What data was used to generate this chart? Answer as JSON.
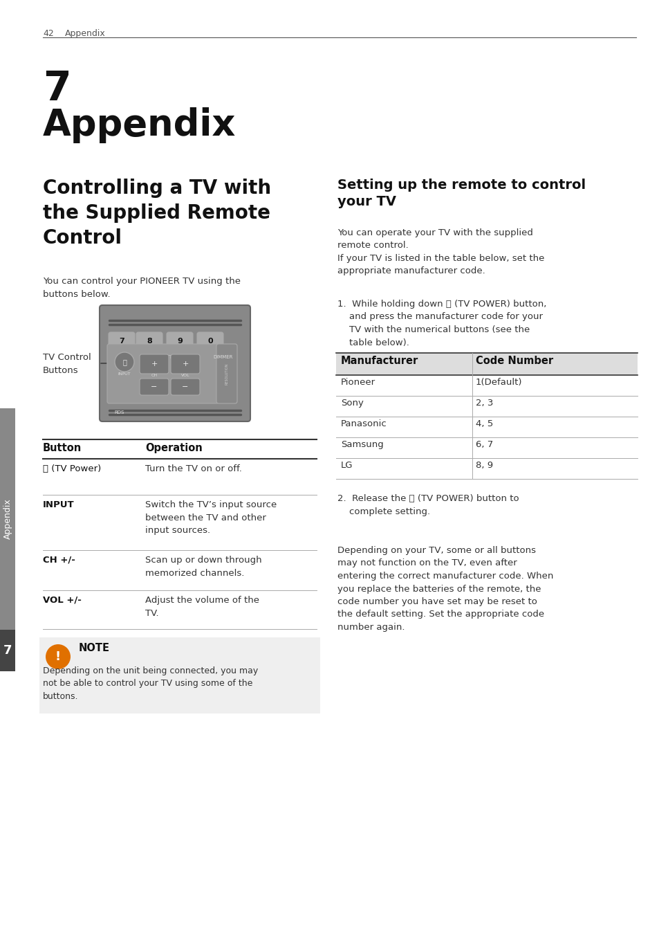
{
  "bg_color": "#ffffff",
  "page_num": "42",
  "page_header": "Appendix",
  "chapter_num": "7",
  "chapter_title": "Appendix",
  "section1_title_lines": [
    "Controlling a TV with",
    "the Supplied Remote",
    "Control"
  ],
  "section1_body": "You can control your PIONEER TV using the\nbuttons below.",
  "tv_control_label": "TV Control\nButtons",
  "section2_title": "Setting up the remote to control\nyour TV",
  "section2_body1": "You can operate your TV with the supplied\nremote control.\nIf your TV is listed in the table below, set the\nappropriate manufacturer code.",
  "step1_text": "1.  While holding down ⏻ (TV POWER) button,\n    and press the manufacturer code for your\n    TV with the numerical buttons (see the\n    table below).",
  "step2_text": "2.  Release the ⏻ (TV POWER) button to\n    complete setting.",
  "table2_headers": [
    "Manufacturer",
    "Code Number"
  ],
  "table2_rows": [
    [
      "Pioneer",
      "1(Default)"
    ],
    [
      "Sony",
      "2, 3"
    ],
    [
      "Panasonic",
      "4, 5"
    ],
    [
      "Samsung",
      "6, 7"
    ],
    [
      "LG",
      "8, 9"
    ]
  ],
  "table1_headers": [
    "Button",
    "Operation"
  ],
  "table1_rows": [
    [
      "⏻ (TV Power)",
      "Turn the TV on or off.",
      false
    ],
    [
      "INPUT",
      "Switch the TV’s input source\nbetween the TV and other\ninput sources.",
      true
    ],
    [
      "CH +/-",
      "Scan up or down through\nmemorized channels.",
      true
    ],
    [
      "VOL +/-",
      "Adjust the volume of the\nTV.",
      true
    ]
  ],
  "note_title": "NOTE",
  "note_body": "Depending on the unit being connected, you may\nnot be able to control your TV using some of the\nbuttons.",
  "after_note_body": "Depending on your TV, some or all buttons\nmay not function on the TV, even after\nentering the correct manufacturer code. When\nyou replace the batteries of the remote, the\ncode number you have set may be reset to\nthe default setting. Set the appropriate code\nnumber again.",
  "sidebar_label": "Appendix",
  "sidebar_num": "7"
}
